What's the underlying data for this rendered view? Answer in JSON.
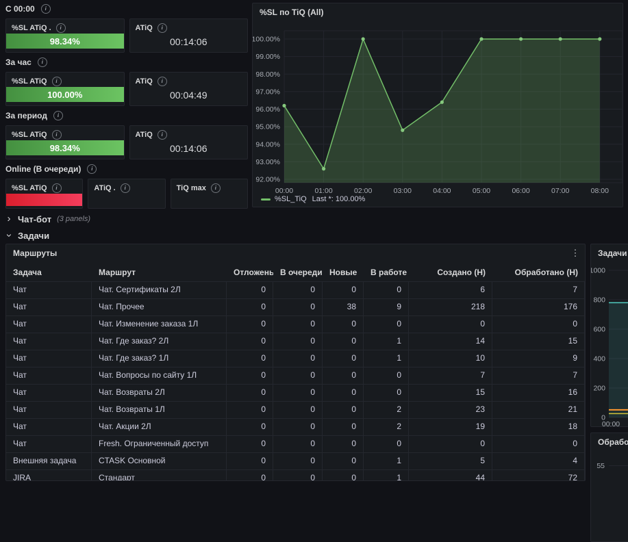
{
  "colors": {
    "green": "#73BF69",
    "green_point": "#86c97e",
    "gauge_green_left": "#449040",
    "gauge_green_right": "#6cc462",
    "gauge_red_left": "#da1f2e",
    "gauge_red_right": "#f43d5c",
    "teal": "#4ec3b8",
    "orange": "#ff9830",
    "yellow": "#cfc13a"
  },
  "icons": {
    "chevron": "›",
    "kebab": "⋮",
    "info": "i",
    "sort_desc": "↓"
  },
  "stats_sections": [
    {
      "label": "С 00:00",
      "panels": [
        {
          "title": "%SL ATiQ .",
          "type": "gauge",
          "color": "green",
          "value": "98.34%"
        },
        {
          "title": "ATiQ",
          "type": "text",
          "value": "00:14:06"
        }
      ]
    },
    {
      "label": "За час",
      "panels": [
        {
          "title": "%SL ATiQ",
          "type": "gauge",
          "color": "green",
          "value": "100.00%"
        },
        {
          "title": "ATiQ",
          "type": "text",
          "value": "00:04:49"
        }
      ]
    },
    {
      "label": "За период",
      "panels": [
        {
          "title": "%SL ATiQ",
          "type": "gauge",
          "color": "green",
          "value": "98.34%"
        },
        {
          "title": "ATiQ",
          "type": "text",
          "value": "00:14:06"
        }
      ]
    },
    {
      "label": "Online (В очереди)",
      "panels": [
        {
          "title": "%SL ATiQ",
          "type": "gauge",
          "color": "red",
          "value": ""
        },
        {
          "title": "ATiQ .",
          "type": "text",
          "value": ""
        },
        {
          "title": "TiQ max",
          "type": "text",
          "value": ""
        }
      ]
    }
  ],
  "rows": {
    "chatbot": {
      "label": "Чат-бот",
      "meta": "(3 panels)",
      "collapsed": true
    },
    "tasks": {
      "label": "Задачи",
      "collapsed": false
    }
  },
  "sl_chart": {
    "title": "%SL по TiQ (All)",
    "legend_name": "%SL_TiQ",
    "legend_value": "Last *: 100.00%",
    "chart_data": {
      "type": "area",
      "x": [
        "00:00",
        "01:00",
        "02:00",
        "03:00",
        "04:00",
        "05:00",
        "06:00",
        "07:00",
        "08:00"
      ],
      "series": [
        {
          "name": "%SL_TiQ",
          "values": [
            96.2,
            92.6,
            100.0,
            94.8,
            96.4,
            100.0,
            100.0,
            100.0,
            100.0
          ]
        }
      ],
      "yticks": [
        100,
        99,
        98,
        97,
        96,
        95,
        94,
        93,
        92
      ],
      "ytick_format": "%.2f%%",
      "ylim": [
        91.8,
        100.5
      ],
      "grid": true,
      "legend_position": "bottom"
    }
  },
  "routes_table": {
    "title": "Маршруты",
    "columns": [
      {
        "label": "Задача"
      },
      {
        "label": "Маршрут"
      },
      {
        "label": "Отложены"
      },
      {
        "label": "В очереди",
        "sort": "desc"
      },
      {
        "label": "Новые"
      },
      {
        "label": "В работе"
      },
      {
        "label": "Создано (Н)"
      },
      {
        "label": "Обработано (Н)"
      }
    ],
    "rows": [
      [
        "Чат",
        "Чат. Сертификаты 2Л",
        "0",
        "0",
        "0",
        "0",
        "6",
        "7"
      ],
      [
        "Чат",
        "Чат. Прочее",
        "0",
        "0",
        "38",
        "9",
        "218",
        "176"
      ],
      [
        "Чат",
        "Чат. Изменение заказа 1Л",
        "0",
        "0",
        "0",
        "0",
        "0",
        "0"
      ],
      [
        "Чат",
        "Чат. Где заказ? 2Л",
        "0",
        "0",
        "0",
        "1",
        "14",
        "15"
      ],
      [
        "Чат",
        "Чат. Где заказ? 1Л",
        "0",
        "0",
        "0",
        "1",
        "10",
        "9"
      ],
      [
        "Чат",
        "Чат. Вопросы по сайту 1Л",
        "0",
        "0",
        "0",
        "0",
        "7",
        "7"
      ],
      [
        "Чат",
        "Чат. Возвраты 2Л",
        "0",
        "0",
        "0",
        "0",
        "15",
        "16"
      ],
      [
        "Чат",
        "Чат. Возвраты 1Л",
        "0",
        "0",
        "0",
        "2",
        "23",
        "21"
      ],
      [
        "Чат",
        "Чат. Акции 2Л",
        "0",
        "0",
        "0",
        "2",
        "19",
        "18"
      ],
      [
        "Чат",
        "Fresh. Ограниченный доступ",
        "0",
        "0",
        "0",
        "0",
        "0",
        "0"
      ],
      [
        "Внешняя задача",
        "CTASK Основной",
        "0",
        "0",
        "0",
        "1",
        "5",
        "4"
      ],
      [
        "JIRA",
        "Стандарт",
        "0",
        "0",
        "0",
        "1",
        "44",
        "72"
      ]
    ]
  },
  "tasks_chart": {
    "title": "Задачи (All",
    "chart_data": {
      "type": "line",
      "x": [
        "00:00"
      ],
      "yticks": [
        1000,
        800,
        600,
        400,
        200,
        0
      ],
      "ylim": [
        0,
        1000
      ],
      "series": [
        {
          "name": "series-teal",
          "color_key": "teal",
          "value": 780
        },
        {
          "name": "series-orange",
          "color_key": "orange",
          "value": 52
        },
        {
          "name": "series-yellow",
          "color_key": "yellow",
          "value": 26
        }
      ]
    }
  },
  "processing_panel": {
    "title": "Обработка",
    "ytick": "55"
  }
}
